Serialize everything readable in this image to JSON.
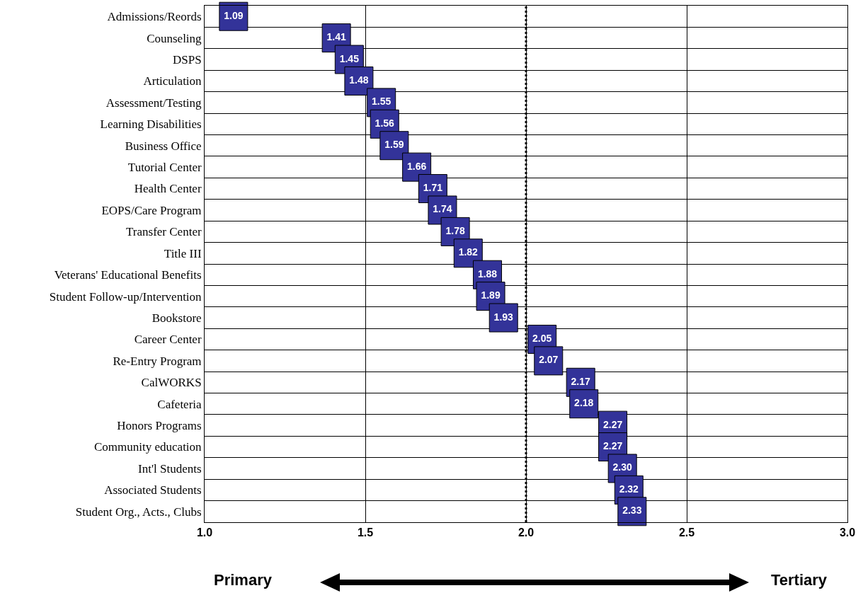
{
  "chart_data": {
    "type": "scatter",
    "orientation": "horizontal",
    "categories": [
      "Admissions/Reords",
      "Counseling",
      "DSPS",
      "Articulation",
      "Assessment/Testing",
      "Learning Disabilities",
      "Business Office",
      "Tutorial Center",
      "Health Center",
      "EOPS/Care Program",
      "Transfer Center",
      "Title III",
      "Veterans' Educational Benefits",
      "Student Follow-up/Intervention",
      "Bookstore",
      "Career Center",
      "Re-Entry Program",
      "CalWORKS",
      "Cafeteria",
      "Honors Programs",
      "Community education",
      "Int'l Students",
      "Associated Students",
      "Student Org., Acts., Clubs"
    ],
    "values": [
      1.09,
      1.41,
      1.45,
      1.48,
      1.55,
      1.56,
      1.59,
      1.66,
      1.71,
      1.74,
      1.78,
      1.82,
      1.88,
      1.89,
      1.93,
      2.05,
      2.07,
      2.17,
      2.18,
      2.27,
      2.27,
      2.3,
      2.32,
      2.33
    ],
    "value_labels": [
      "1.09",
      "1.41",
      "1.45",
      "1.48",
      "1.55",
      "1.56",
      "1.59",
      "1.66",
      "1.71",
      "1.74",
      "1.78",
      "1.82",
      "1.88",
      "1.89",
      "1.93",
      "2.05",
      "2.07",
      "2.17",
      "2.18",
      "2.27",
      "2.27",
      "2.30",
      "2.32",
      "2.33"
    ],
    "color": "#333399",
    "marker": "square",
    "xlim": [
      1,
      3
    ],
    "xticks": [
      {
        "value": 1,
        "label": "1.0"
      },
      {
        "value": 1.5,
        "label": "1.5"
      },
      {
        "value": 2,
        "label": "2.0"
      },
      {
        "value": 2.5,
        "label": "2.5"
      },
      {
        "value": 3,
        "label": "3.0"
      }
    ],
    "grid": true,
    "ref_lines": [
      {
        "axis": "x",
        "value": 2,
        "color": "#000000",
        "line_style": "dotted"
      }
    ],
    "annotations": [
      "Primary",
      "Tertiary"
    ]
  }
}
